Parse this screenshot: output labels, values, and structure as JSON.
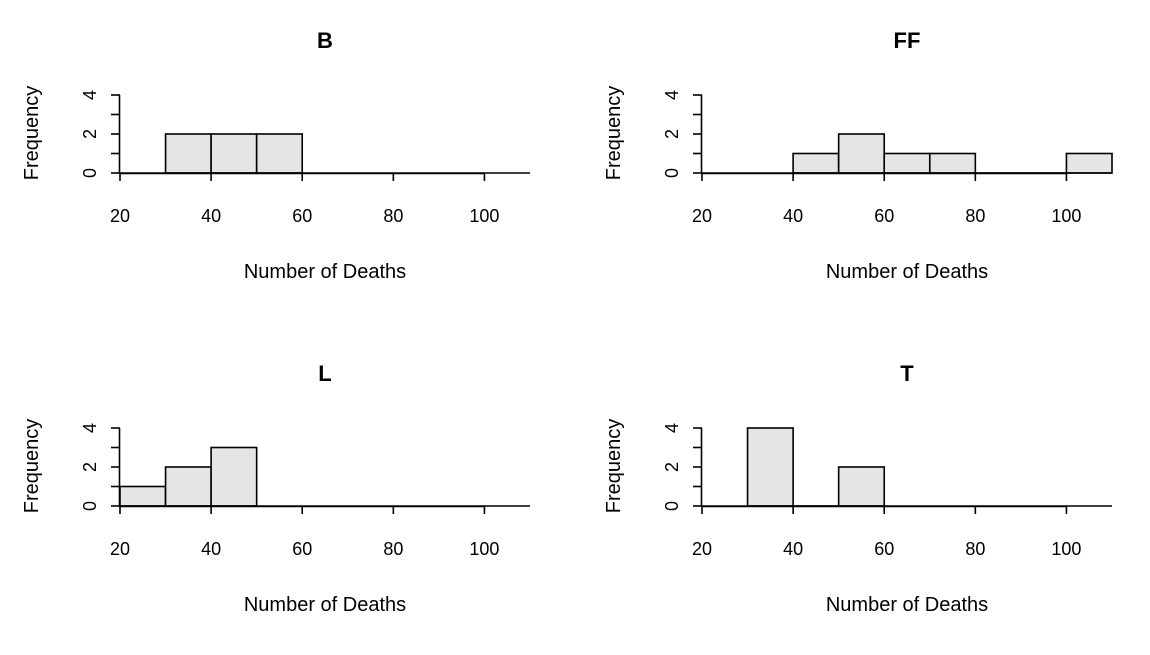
{
  "style": {
    "bar_fill": "#e5e5e5",
    "bar_stroke": "#000000",
    "background": "#ffffff"
  },
  "chart_data": [
    {
      "type": "bar",
      "title": "B",
      "xlabel": "Number of Deaths",
      "ylabel": "Frequency",
      "xlim": [
        20,
        110
      ],
      "xticks": [
        20,
        40,
        60,
        80,
        100
      ],
      "ylim": [
        0,
        4
      ],
      "yticks": [
        0,
        2,
        4
      ],
      "bins": [
        {
          "x0": 30,
          "x1": 40,
          "count": 2
        },
        {
          "x0": 40,
          "x1": 50,
          "count": 2
        },
        {
          "x0": 50,
          "x1": 60,
          "count": 2
        }
      ]
    },
    {
      "type": "bar",
      "title": "FF",
      "xlabel": "Number of Deaths",
      "ylabel": "Frequency",
      "xlim": [
        20,
        110
      ],
      "xticks": [
        20,
        40,
        60,
        80,
        100
      ],
      "ylim": [
        0,
        4
      ],
      "yticks": [
        0,
        2,
        4
      ],
      "bins": [
        {
          "x0": 40,
          "x1": 50,
          "count": 1
        },
        {
          "x0": 50,
          "x1": 60,
          "count": 2
        },
        {
          "x0": 60,
          "x1": 70,
          "count": 1
        },
        {
          "x0": 70,
          "x1": 80,
          "count": 1
        },
        {
          "x0": 80,
          "x1": 90,
          "count": 0
        },
        {
          "x0": 90,
          "x1": 100,
          "count": 0
        },
        {
          "x0": 100,
          "x1": 110,
          "count": 1
        }
      ]
    },
    {
      "type": "bar",
      "title": "L",
      "xlabel": "Number of Deaths",
      "ylabel": "Frequency",
      "xlim": [
        20,
        110
      ],
      "xticks": [
        20,
        40,
        60,
        80,
        100
      ],
      "ylim": [
        0,
        4
      ],
      "yticks": [
        0,
        2,
        4
      ],
      "bins": [
        {
          "x0": 20,
          "x1": 30,
          "count": 1
        },
        {
          "x0": 30,
          "x1": 40,
          "count": 2
        },
        {
          "x0": 40,
          "x1": 50,
          "count": 3
        }
      ]
    },
    {
      "type": "bar",
      "title": "T",
      "xlabel": "Number of Deaths",
      "ylabel": "Frequency",
      "xlim": [
        20,
        110
      ],
      "xticks": [
        20,
        40,
        60,
        80,
        100
      ],
      "ylim": [
        0,
        4
      ],
      "yticks": [
        0,
        2,
        4
      ],
      "bins": [
        {
          "x0": 30,
          "x1": 40,
          "count": 4
        },
        {
          "x0": 40,
          "x1": 50,
          "count": 0
        },
        {
          "x0": 50,
          "x1": 60,
          "count": 2
        }
      ]
    }
  ]
}
